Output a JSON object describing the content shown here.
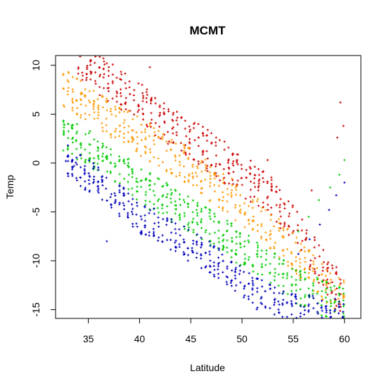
{
  "chart_data": {
    "type": "scatter",
    "title": "MCMT",
    "xlabel": "Latitude",
    "ylabel": "Temp",
    "xlim": [
      31.8,
      61.6
    ],
    "ylim": [
      -15.9,
      11.0
    ],
    "x_ticks": [
      35,
      40,
      45,
      50,
      55,
      60
    ],
    "y_ticks": [
      -15,
      -10,
      -5,
      0,
      5,
      10
    ],
    "grid": false,
    "legend": "none",
    "series": [
      {
        "color": "#cc0000",
        "trend": [
          [
            34,
            10.5
          ],
          [
            38,
            7.8
          ],
          [
            42,
            4.5
          ],
          [
            46,
            1.8
          ],
          [
            50,
            -1.2
          ],
          [
            53,
            -3.5
          ],
          [
            56,
            -7.5
          ],
          [
            58,
            -11
          ],
          [
            60,
            -13.5
          ]
        ],
        "spread": 2.2,
        "points": [
          [
            34.2,
            10.9
          ],
          [
            41,
            9.8
          ],
          [
            59.6,
            6.2
          ],
          [
            59.9,
            3.8
          ],
          [
            59.3,
            2.6
          ],
          [
            52.5,
            0.3
          ],
          [
            56.8,
            -2.8
          ],
          [
            36.8,
            10.2
          ],
          [
            38.1,
            8.6
          ]
        ]
      },
      {
        "color": "#ff9900",
        "trend": [
          [
            32.6,
            7.6
          ],
          [
            36,
            5.4
          ],
          [
            40,
            2.8
          ],
          [
            44,
            0.2
          ],
          [
            48,
            -2.8
          ],
          [
            52,
            -6.0
          ],
          [
            55,
            -9.2
          ],
          [
            58,
            -12.3
          ],
          [
            60,
            -14
          ]
        ],
        "spread": 2.0,
        "points": [
          [
            32.6,
            7.6
          ],
          [
            33.5,
            7.3
          ],
          [
            34.4,
            7.1
          ],
          [
            45.5,
            -1.0
          ]
        ]
      },
      {
        "color": "#00cc00",
        "trend": [
          [
            32.6,
            3.0
          ],
          [
            36,
            0.8
          ],
          [
            40,
            -2.2
          ],
          [
            44,
            -4.8
          ],
          [
            48,
            -7.3
          ],
          [
            52,
            -10.2
          ],
          [
            55,
            -12.4
          ],
          [
            58,
            -13.8
          ],
          [
            60,
            -14.8
          ]
        ],
        "spread": 1.9,
        "points": [
          [
            32.6,
            3.0
          ],
          [
            33.5,
            2.6
          ],
          [
            60,
            0.3
          ],
          [
            59.5,
            -1.2
          ],
          [
            58.6,
            -2.5
          ],
          [
            57.5,
            -3.8
          ],
          [
            56.5,
            -5.5
          ],
          [
            55.5,
            -7
          ]
        ]
      },
      {
        "color": "#0000bb",
        "trend": [
          [
            33,
            0.2
          ],
          [
            36,
            -2.0
          ],
          [
            40,
            -5.5
          ],
          [
            44,
            -7.8
          ],
          [
            48,
            -10.5
          ],
          [
            51,
            -13.2
          ],
          [
            54,
            -14.8
          ],
          [
            57,
            -15.3
          ],
          [
            60,
            -15.6
          ]
        ],
        "spread": 1.7,
        "points": [
          [
            32.8,
            0.2
          ],
          [
            33.6,
            -0.3
          ],
          [
            36.8,
            -8.0
          ],
          [
            60,
            -2.0
          ],
          [
            59.2,
            -3.3
          ],
          [
            58.5,
            -4.8
          ],
          [
            57.6,
            -6.3
          ],
          [
            56.6,
            -7.8
          ],
          [
            55.5,
            -9.3
          ]
        ]
      }
    ]
  }
}
